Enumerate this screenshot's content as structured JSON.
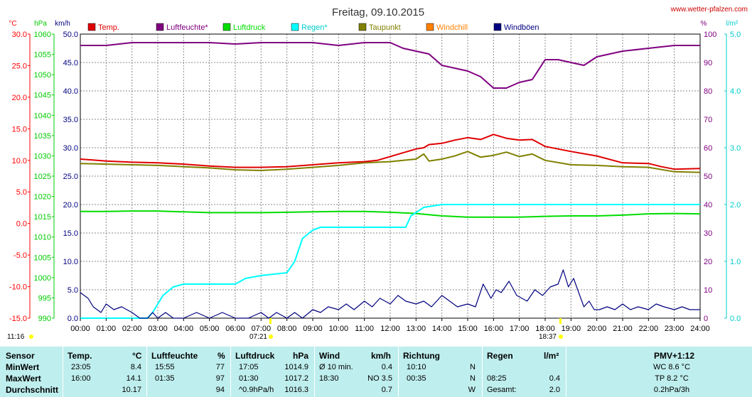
{
  "title": "Freitag, 09.10.2015",
  "site": "www.wetter-pfalzen.com",
  "colors": {
    "temp": "#e00000",
    "humidity": "#800080",
    "pressure": "#00dd00",
    "rain": "#00ffff",
    "dewpoint": "#808000",
    "windchill": "#ff8000",
    "gust": "#000080",
    "axis_temp": "#ff0000",
    "axis_pressure": "#00cc00",
    "axis_wind": "#000080",
    "axis_hum": "#800080",
    "axis_rain": "#00cccc",
    "sun": "#ffff00"
  },
  "units": {
    "temp": "°C",
    "pressure": "hPa",
    "wind": "km/h",
    "humidity": "%",
    "rain": "l/m²"
  },
  "legend": [
    "Temp.",
    "Luftfeuchte*",
    "Luftdruck",
    "Regen*",
    "Taupunkt",
    "Windchill",
    "Windböen"
  ],
  "sunrise": "07:21",
  "sunset": "18:37",
  "start_label": "11:16",
  "chart_data": {
    "type": "line",
    "title": "Freitag, 09.10.2015",
    "x_ticks": [
      "00:00",
      "01:00",
      "02:00",
      "03:00",
      "04:00",
      "05:00",
      "06:00",
      "07:00",
      "08:00",
      "09:00",
      "10:00",
      "11:00",
      "12:00",
      "13:00",
      "14:00",
      "15:00",
      "16:00",
      "17:00",
      "18:00",
      "19:00",
      "20:00",
      "21:00",
      "22:00",
      "23:00",
      "24:00"
    ],
    "axes": {
      "temp": {
        "min": -15,
        "max": 30,
        "ticks": [
          "30.0",
          "25.0",
          "20.0",
          "15.0",
          "10.0",
          "5.0",
          "0.0",
          "-5.0",
          "-10.0",
          "-15.0"
        ]
      },
      "pressure": {
        "min": 990,
        "max": 1060,
        "ticks": [
          "1060",
          "1055",
          "1050",
          "1045",
          "1040",
          "1035",
          "1030",
          "1025",
          "1020",
          "1015",
          "1010",
          "1005",
          "1000",
          "995",
          "990"
        ]
      },
      "wind": {
        "min": 0,
        "max": 50,
        "ticks": [
          "50.0",
          "45.0",
          "40.0",
          "35.0",
          "30.0",
          "25.0",
          "20.0",
          "15.0",
          "10.0",
          "5.0",
          "0.0"
        ]
      },
      "humidity": {
        "min": 0,
        "max": 100,
        "ticks": [
          "100",
          "90",
          "80",
          "70",
          "60",
          "50",
          "40",
          "30",
          "20",
          "10",
          "0"
        ]
      },
      "rain": {
        "min": 0,
        "max": 5,
        "ticks": [
          "5.0",
          "4.0",
          "3.0",
          "2.0",
          "1.0",
          "0.0"
        ]
      }
    },
    "series": [
      {
        "name": "Temp.",
        "axis": "temp",
        "x": [
          0,
          1,
          2,
          3,
          4,
          5,
          6,
          7,
          8,
          9,
          10,
          11,
          11.5,
          12,
          12.5,
          13,
          13.3,
          13.5,
          14,
          14.5,
          15,
          15.5,
          16,
          16.5,
          17,
          17.5,
          18,
          19,
          20,
          21,
          22,
          22.5,
          23,
          24
        ],
        "y": [
          10.2,
          9.9,
          9.7,
          9.6,
          9.4,
          9.1,
          8.9,
          8.9,
          9.0,
          9.3,
          9.6,
          9.8,
          10.0,
          10.6,
          11.2,
          11.8,
          12.0,
          12.5,
          12.7,
          13.2,
          13.6,
          13.3,
          14.1,
          13.5,
          13.2,
          13.3,
          12.2,
          11.4,
          10.7,
          9.6,
          9.5,
          9.0,
          8.6,
          8.7
        ]
      },
      {
        "name": "Taupunkt",
        "axis": "temp",
        "x": [
          0,
          1,
          2,
          3,
          4,
          5,
          6,
          7,
          8,
          9,
          10,
          11,
          12,
          12.5,
          13,
          13.3,
          13.5,
          14,
          14.5,
          15,
          15.5,
          16,
          16.5,
          17,
          17.5,
          18,
          19,
          20,
          21,
          22,
          23,
          24
        ],
        "y": [
          9.5,
          9.4,
          9.3,
          9.2,
          9.0,
          8.8,
          8.5,
          8.4,
          8.6,
          8.9,
          9.2,
          9.6,
          9.8,
          10.0,
          10.2,
          11.0,
          9.9,
          10.2,
          10.7,
          11.4,
          10.5,
          10.8,
          11.3,
          10.6,
          11.0,
          10.0,
          9.3,
          9.2,
          9.0,
          8.9,
          8.2,
          8.1
        ]
      },
      {
        "name": "Luftfeuchte*",
        "axis": "humidity",
        "x": [
          0,
          1,
          2,
          3,
          4,
          5,
          6,
          7,
          8,
          9,
          10,
          11,
          12,
          12.5,
          13,
          13.5,
          14,
          14.5,
          15,
          15.5,
          16,
          16.5,
          17,
          17.5,
          18,
          18.5,
          19,
          19.5,
          20,
          21,
          22,
          23,
          24
        ],
        "y": [
          96,
          96,
          97,
          97,
          97,
          97,
          96.5,
          97,
          97,
          97,
          96,
          97,
          97,
          95,
          94,
          93,
          89,
          88,
          87,
          85,
          81,
          81,
          83,
          84,
          91,
          91,
          90,
          89,
          92,
          94,
          95,
          96,
          96
        ]
      },
      {
        "name": "Luftdruck",
        "axis": "pressure",
        "x": [
          0,
          1,
          2,
          3,
          4,
          5,
          6,
          7,
          8,
          9,
          10,
          11,
          12,
          13,
          14,
          15,
          16,
          17,
          18,
          19,
          20,
          21,
          22,
          23,
          24
        ],
        "y": [
          1016.3,
          1016.3,
          1016.4,
          1016.4,
          1016.2,
          1016.0,
          1016.0,
          1016.0,
          1016.1,
          1016.2,
          1016.3,
          1016.3,
          1016.1,
          1015.8,
          1015.2,
          1014.9,
          1014.9,
          1014.9,
          1015.1,
          1015.2,
          1015.2,
          1015.4,
          1015.7,
          1015.8,
          1015.7
        ]
      },
      {
        "name": "Regen*",
        "axis": "rain",
        "x": [
          0,
          2.6,
          2.8,
          3.2,
          3.6,
          4.0,
          5.0,
          6.0,
          6.4,
          7.0,
          8.0,
          8.3,
          8.6,
          9.0,
          9.3,
          9.6,
          10.0,
          11.0,
          12.0,
          12.6,
          12.8,
          13.3,
          14.0,
          24.0
        ],
        "y": [
          0,
          0,
          0.1,
          0.4,
          0.55,
          0.6,
          0.6,
          0.6,
          0.7,
          0.75,
          0.8,
          1.0,
          1.4,
          1.55,
          1.6,
          1.6,
          1.6,
          1.6,
          1.6,
          1.6,
          1.8,
          1.95,
          2.0,
          2.0
        ]
      },
      {
        "name": "Windböen",
        "axis": "wind",
        "x": [
          0,
          0.3,
          0.5,
          0.8,
          1.0,
          1.3,
          1.6,
          2.0,
          2.3,
          2.6,
          2.8,
          3.0,
          3.3,
          3.6,
          4.0,
          4.5,
          5.0,
          5.5,
          6.0,
          6.5,
          7.0,
          7.3,
          7.6,
          8.0,
          8.3,
          8.6,
          9.0,
          9.3,
          9.6,
          10.0,
          10.3,
          10.6,
          11.0,
          11.3,
          11.6,
          12.0,
          12.3,
          12.6,
          13.0,
          13.3,
          13.6,
          14.0,
          14.3,
          14.6,
          15.0,
          15.3,
          15.6,
          15.9,
          16.1,
          16.3,
          16.6,
          16.9,
          17.1,
          17.3,
          17.6,
          17.9,
          18.2,
          18.5,
          18.7,
          18.9,
          19.1,
          19.3,
          19.5,
          19.7,
          19.9,
          20.1,
          20.4,
          20.7,
          21.0,
          21.3,
          21.6,
          22.0,
          22.3,
          22.6,
          23.0,
          23.3,
          23.6,
          24.0
        ],
        "y": [
          4.5,
          3.5,
          2.0,
          1.0,
          2.5,
          1.5,
          2.0,
          1.0,
          0,
          0,
          1.0,
          0,
          1.0,
          0,
          0,
          1.0,
          0,
          1.0,
          0,
          0,
          1.0,
          0,
          1.0,
          0,
          1.0,
          0,
          1.5,
          1.0,
          2.0,
          1.5,
          2.5,
          1.5,
          3.0,
          2.0,
          3.5,
          2.5,
          4.0,
          3.0,
          2.5,
          3.0,
          2.0,
          4.0,
          3.0,
          2.0,
          2.5,
          2.0,
          6.0,
          3.5,
          5.0,
          4.5,
          6.5,
          4.0,
          3.5,
          3.0,
          5.0,
          4.0,
          5.5,
          6.0,
          8.5,
          5.5,
          7.0,
          4.5,
          2.0,
          3.0,
          1.5,
          1.5,
          2.0,
          1.5,
          2.5,
          1.5,
          2.0,
          1.5,
          2.5,
          2.0,
          1.5,
          2.0,
          1.5,
          1.5
        ]
      }
    ]
  },
  "table": {
    "headers": {
      "sensor": "Sensor",
      "temp": "Temp.",
      "temp_unit": "°C",
      "hum": "Luftfeuchte",
      "hum_unit": "%",
      "press": "Luftdruck",
      "press_unit": "hPa",
      "wind": "Wind",
      "wind_unit": "km/h",
      "dir": "Richtung",
      "rain": "Regen",
      "rain_unit": "l/m²",
      "pmv": "PMV+1:12"
    },
    "rows": {
      "min": {
        "label": "MinWert",
        "temp_time": "23:05",
        "temp_val": "8.4",
        "hum_time": "15:55",
        "hum_val": "77",
        "press_time": "17:05",
        "press_val": "1014.9",
        "wind_label": "Ø 10 min.",
        "wind_val": "0.4",
        "dir_time": "10:10",
        "dir_val": "N",
        "rain_time": "",
        "rain_val": "",
        "pmv": "WC 8.6 °C"
      },
      "max": {
        "label": "MaxWert",
        "temp_time": "16:00",
        "temp_val": "14.1",
        "hum_time": "01:35",
        "hum_val": "97",
        "press_time": "01:30",
        "press_val": "1017.2",
        "wind_label": "18:30",
        "wind_val": "NO 3.5",
        "dir_time": "00:35",
        "dir_val": "N",
        "rain_time": "08:25",
        "rain_val": "0.4",
        "pmv": "TP 8.2 °C"
      },
      "avg": {
        "label": "Durchschnitt",
        "temp_time": "",
        "temp_val": "10.17",
        "hum_time": "",
        "hum_val": "94",
        "press_time": "^0.9hPa/h",
        "press_val": "1016.3",
        "wind_label": "",
        "wind_val": "0.7",
        "dir_time": "",
        "dir_val": "W",
        "rain_time": "Gesamt:",
        "rain_val": "2.0",
        "pmv": "0.2hPa/3h"
      }
    }
  }
}
